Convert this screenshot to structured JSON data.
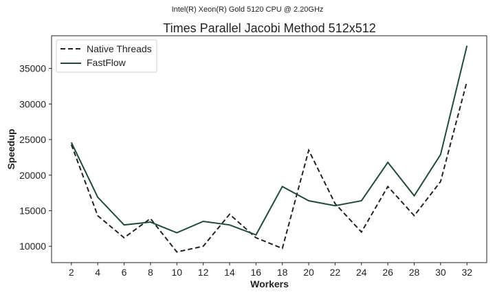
{
  "suptitle": "Intel(R) Xeon(R) Gold 5120 CPU @ 2.20GHz",
  "colors": {
    "native": "#222222",
    "fastflow": "#1f4a35",
    "axes": "#222222"
  },
  "chart_data": {
    "type": "line",
    "title": "Times Parallel Jacobi Method 512x512",
    "xlabel": "Workers",
    "ylabel": "Speedup",
    "x": [
      2,
      4,
      6,
      8,
      10,
      12,
      14,
      16,
      18,
      20,
      22,
      24,
      26,
      28,
      30,
      32
    ],
    "xticks": [
      "2",
      "4",
      "6",
      "8",
      "10",
      "12",
      "14",
      "16",
      "18",
      "20",
      "22",
      "24",
      "26",
      "28",
      "30",
      "32"
    ],
    "yticks": [
      10000,
      15000,
      20000,
      25000,
      30000,
      35000
    ],
    "ytick_labels": [
      "10000",
      "15000",
      "20000",
      "25000",
      "30000",
      "35000"
    ],
    "xlim": [
      0.5,
      33.5
    ],
    "ylim": [
      7700,
      39600
    ],
    "grid": false,
    "legend": "top-left",
    "series": [
      {
        "name": "Native Threads",
        "style": "dashed",
        "values": [
          24300,
          14300,
          11200,
          13900,
          9200,
          10000,
          14500,
          11200,
          9700,
          23500,
          16000,
          12000,
          18400,
          14300,
          19100,
          33200
        ]
      },
      {
        "name": "FastFlow",
        "style": "solid",
        "values": [
          24600,
          16900,
          13000,
          13400,
          11900,
          13500,
          13000,
          11600,
          18400,
          16400,
          15700,
          16400,
          21800,
          17100,
          22900,
          38200
        ]
      }
    ]
  }
}
